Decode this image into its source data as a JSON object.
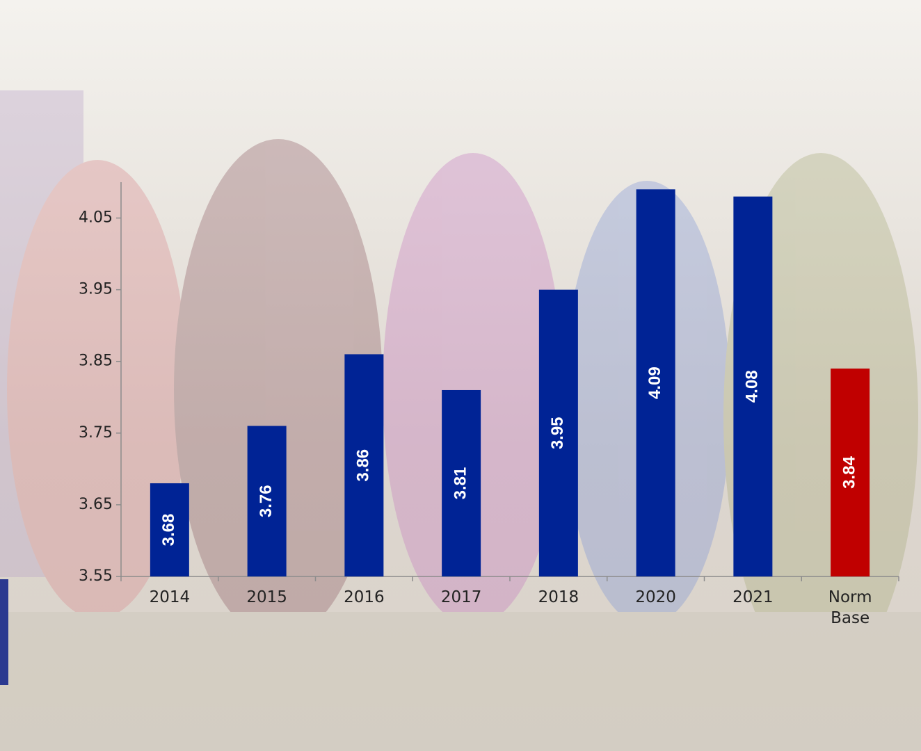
{
  "chart_data": {
    "type": "bar",
    "categories": [
      "2014",
      "2015",
      "2016",
      "2017",
      "2018",
      "2020",
      "2021",
      "Norm Base"
    ],
    "values": [
      3.68,
      3.76,
      3.86,
      3.81,
      3.95,
      4.09,
      4.08,
      3.84
    ],
    "colors": [
      "#002395",
      "#002395",
      "#002395",
      "#002395",
      "#002395",
      "#002395",
      "#002395",
      "#c00000"
    ],
    "ylim": [
      3.55,
      4.1
    ],
    "yticks": [
      3.55,
      3.65,
      3.75,
      3.85,
      3.95,
      4.05
    ],
    "grid": false
  }
}
